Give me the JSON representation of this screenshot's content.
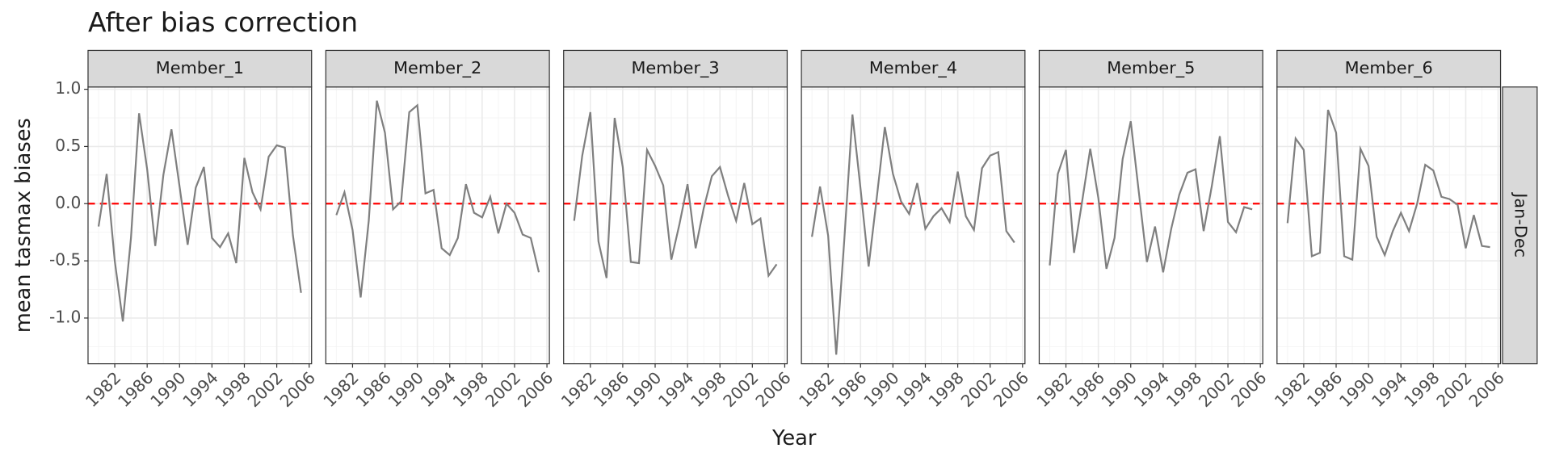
{
  "chart_data": {
    "type": "line",
    "title": "After bias correction",
    "x_label": "Year",
    "y_label": "mean tasmax biases",
    "row_strip": "Jan-Dec",
    "x": [
      1980,
      1981,
      1982,
      1983,
      1984,
      1985,
      1986,
      1987,
      1988,
      1989,
      1990,
      1991,
      1992,
      1993,
      1994,
      1995,
      1996,
      1997,
      1998,
      1999,
      2000,
      2001,
      2002,
      2003,
      2004,
      2005
    ],
    "series": [
      {
        "name": "Member_1",
        "color": "#7f7f7f",
        "values": [
          -0.2,
          0.26,
          -0.5,
          -1.03,
          -0.3,
          0.79,
          0.3,
          -0.37,
          0.25,
          0.65,
          0.15,
          -0.36,
          0.14,
          0.32,
          -0.3,
          -0.38,
          -0.26,
          -0.52,
          0.4,
          0.1,
          -0.05,
          0.41,
          0.51,
          0.49,
          -0.28,
          -0.78
        ]
      },
      {
        "name": "Member_2",
        "color": "#7f7f7f",
        "values": [
          -0.1,
          0.1,
          -0.23,
          -0.82,
          -0.15,
          0.9,
          0.62,
          -0.05,
          0.02,
          0.8,
          0.86,
          0.09,
          0.12,
          -0.39,
          -0.45,
          -0.3,
          0.17,
          -0.08,
          -0.12,
          0.06,
          -0.26,
          0.0,
          -0.08,
          -0.27,
          -0.3,
          -0.6
        ]
      },
      {
        "name": "Member_3",
        "color": "#7f7f7f",
        "values": [
          -0.15,
          0.42,
          0.8,
          -0.33,
          -0.65,
          0.75,
          0.32,
          -0.51,
          -0.52,
          0.47,
          0.33,
          0.16,
          -0.49,
          -0.18,
          0.17,
          -0.39,
          -0.04,
          0.24,
          0.32,
          0.07,
          -0.15,
          0.18,
          -0.18,
          -0.13,
          -0.63,
          -0.53
        ]
      },
      {
        "name": "Member_4",
        "color": "#7f7f7f",
        "values": [
          -0.29,
          0.15,
          -0.28,
          -1.32,
          -0.31,
          0.78,
          0.13,
          -0.55,
          0.05,
          0.67,
          0.26,
          0.02,
          -0.09,
          0.18,
          -0.22,
          -0.11,
          -0.04,
          -0.16,
          0.28,
          -0.11,
          -0.23,
          0.31,
          0.42,
          0.45,
          -0.24,
          -0.34
        ]
      },
      {
        "name": "Member_5",
        "color": "#7f7f7f",
        "values": [
          -0.54,
          0.26,
          0.47,
          -0.43,
          0.02,
          0.48,
          0.05,
          -0.57,
          -0.3,
          0.39,
          0.72,
          0.1,
          -0.51,
          -0.2,
          -0.6,
          -0.22,
          0.08,
          0.27,
          0.3,
          -0.24,
          0.15,
          0.59,
          -0.16,
          -0.25,
          -0.03,
          -0.05
        ]
      },
      {
        "name": "Member_6",
        "color": "#7f7f7f",
        "values": [
          -0.17,
          0.57,
          0.47,
          -0.46,
          -0.43,
          0.82,
          0.62,
          -0.46,
          -0.49,
          0.48,
          0.33,
          -0.29,
          -0.45,
          -0.24,
          -0.08,
          -0.24,
          0.0,
          0.34,
          0.29,
          0.06,
          0.04,
          -0.01,
          -0.39,
          -0.1,
          -0.37,
          -0.38
        ]
      }
    ],
    "hline": {
      "value": 0,
      "color": "#ff0000"
    },
    "xlim": [
      1978.7,
      2006.3
    ],
    "xticks": [
      1982,
      1986,
      1990,
      1994,
      1998,
      2002,
      2006
    ],
    "ylim": [
      -1.4,
      1.02
    ],
    "yticks": [
      {
        "value": -1.0,
        "label": "-1.0"
      },
      {
        "value": -0.5,
        "label": "-0.5"
      },
      {
        "value": 0,
        "label": "0.0"
      },
      {
        "value": 0.5,
        "label": "0.5"
      },
      {
        "value": 1.0,
        "label": "1.0"
      }
    ],
    "grid": true
  }
}
